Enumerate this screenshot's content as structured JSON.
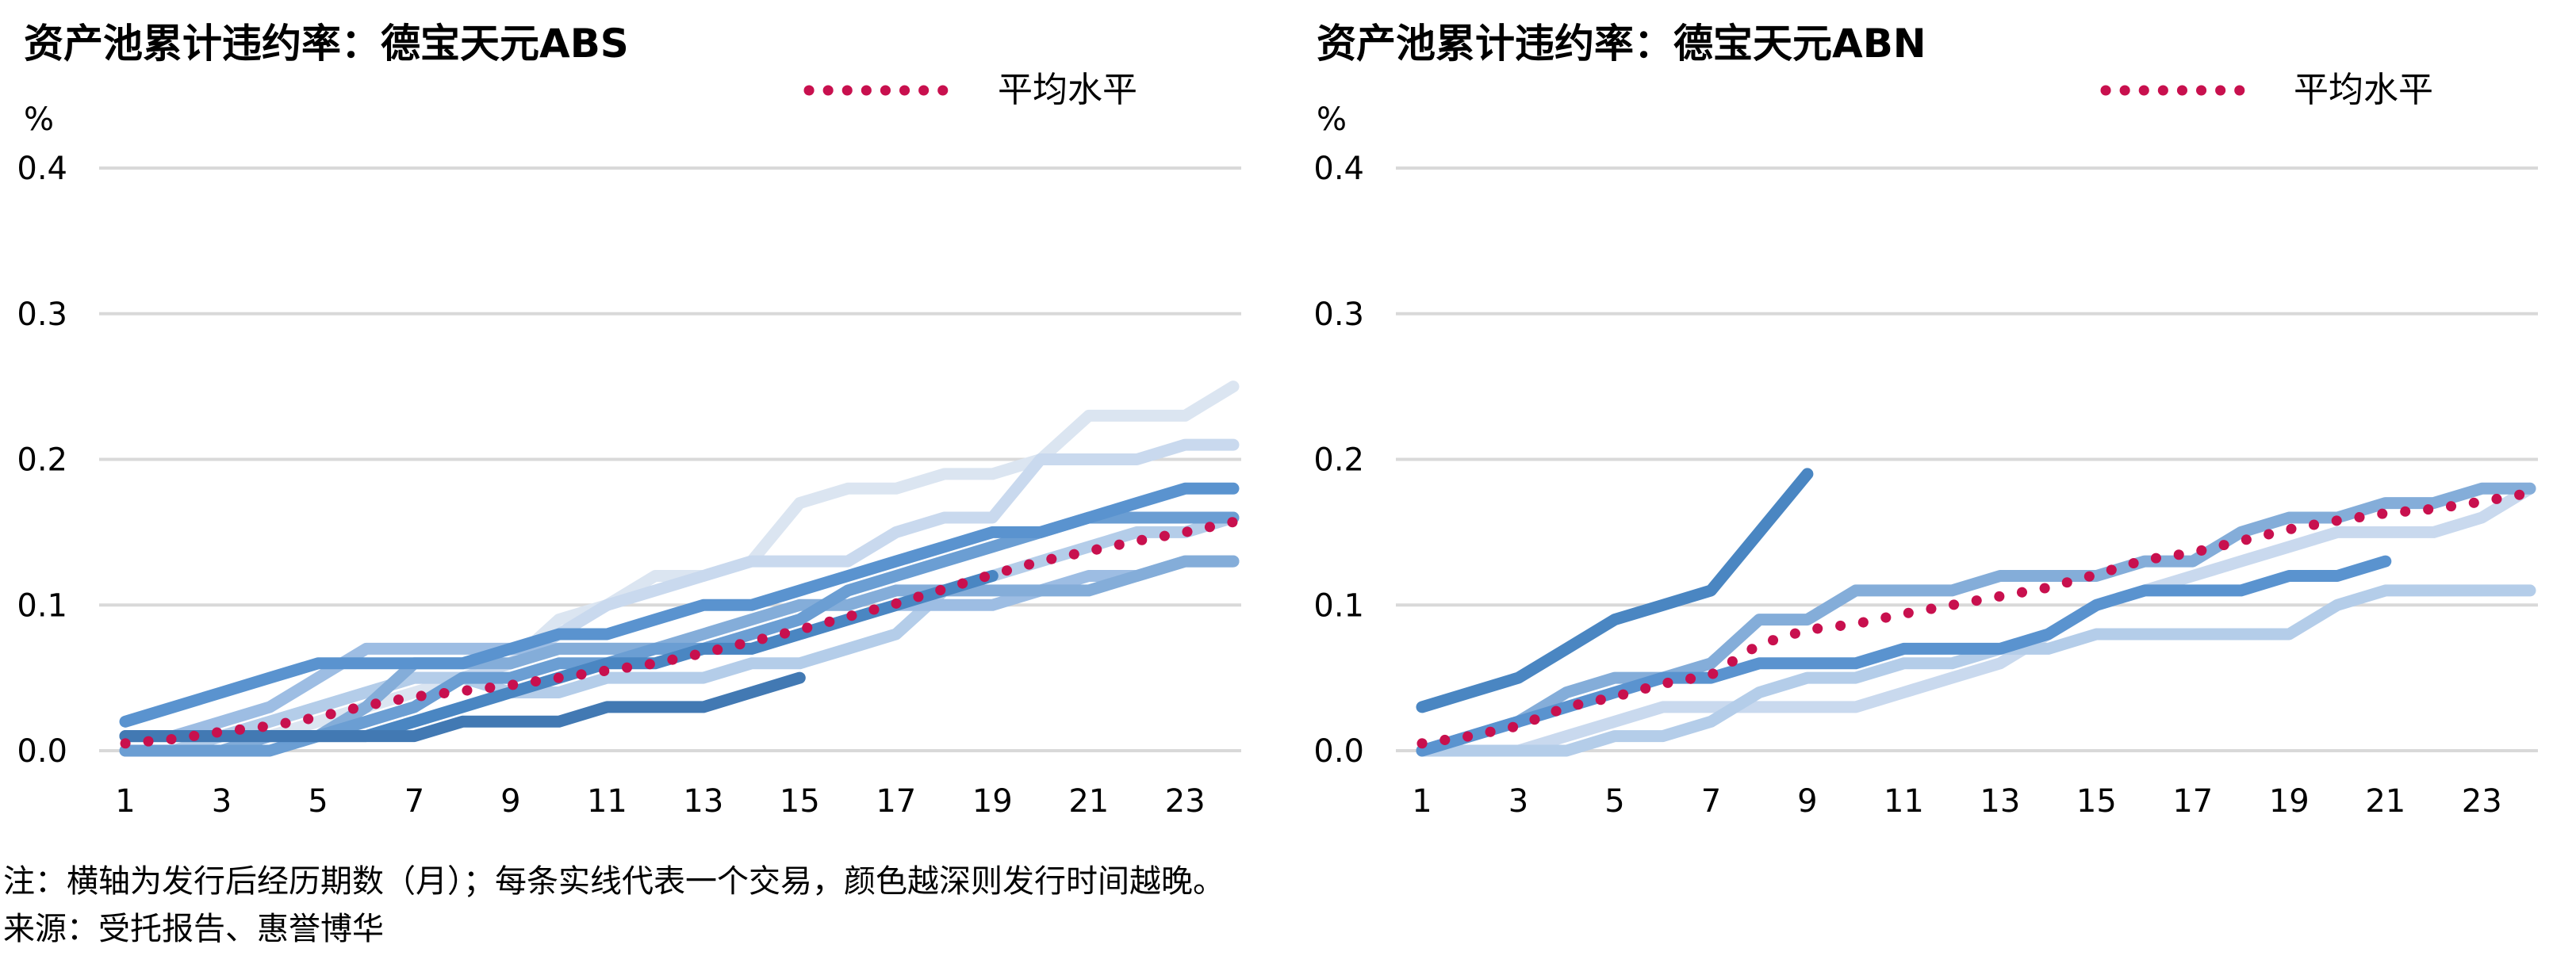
{
  "chart_data": [
    {
      "type": "line",
      "title": "资产池累计违约率：德宝天元ABS",
      "ylabel": "%",
      "yticks": [
        "0.0",
        "0.1",
        "0.2",
        "0.3",
        "0.4"
      ],
      "ylim": [
        0,
        0.4
      ],
      "xlim": [
        1,
        24
      ],
      "xticks": [
        "1",
        "3",
        "5",
        "7",
        "9",
        "11",
        "13",
        "15",
        "17",
        "19",
        "21",
        "23"
      ],
      "grid": true,
      "legend_position": "top-right",
      "legend": "平均水平",
      "average_color": "#c8104e",
      "series": [
        {
          "color": "#dbe5f1",
          "x": [
            1,
            2,
            3,
            4,
            5,
            6,
            7,
            8,
            9,
            10,
            11,
            12,
            13,
            14,
            15,
            16,
            17,
            18,
            19,
            20,
            21,
            22,
            23,
            24
          ],
          "values": [
            0,
            0,
            0,
            0.01,
            0.02,
            0.03,
            0.04,
            0.05,
            0.06,
            0.09,
            0.1,
            0.12,
            0.12,
            0.13,
            0.17,
            0.18,
            0.18,
            0.19,
            0.19,
            0.2,
            0.23,
            0.23,
            0.23,
            0.25
          ]
        },
        {
          "color": "#c9d9ee",
          "x": [
            1,
            2,
            3,
            4,
            5,
            6,
            7,
            8,
            9,
            10,
            11,
            12,
            13,
            14,
            15,
            16,
            17,
            18,
            19,
            20,
            21,
            22,
            23,
            24
          ],
          "values": [
            0,
            0,
            0.01,
            0.02,
            0.03,
            0.04,
            0.05,
            0.05,
            0.06,
            0.08,
            0.1,
            0.11,
            0.12,
            0.13,
            0.13,
            0.13,
            0.15,
            0.16,
            0.16,
            0.2,
            0.2,
            0.2,
            0.21,
            0.21
          ]
        },
        {
          "color": "#b4cde9",
          "x": [
            1,
            2,
            3,
            4,
            5,
            6,
            7,
            8,
            9,
            10,
            11,
            12,
            13,
            14,
            15,
            16,
            17,
            18,
            19,
            20,
            21,
            22,
            23,
            24
          ],
          "values": [
            0,
            0,
            0.01,
            0.02,
            0.03,
            0.04,
            0.05,
            0.05,
            0.04,
            0.04,
            0.05,
            0.05,
            0.05,
            0.06,
            0.06,
            0.07,
            0.08,
            0.11,
            0.12,
            0.13,
            0.14,
            0.15,
            0.15,
            0.16
          ]
        },
        {
          "color": "#9dbde3",
          "x": [
            1,
            2,
            3,
            4,
            5,
            6,
            7,
            8,
            9,
            10,
            11,
            12,
            13,
            14,
            15,
            16,
            17,
            18,
            19,
            20,
            21,
            22,
            23,
            24
          ],
          "values": [
            0.01,
            0.01,
            0.02,
            0.03,
            0.05,
            0.07,
            0.07,
            0.07,
            0.07,
            0.07,
            0.07,
            0.07,
            0.07,
            0.07,
            0.08,
            0.09,
            0.1,
            0.1,
            0.1,
            0.11,
            0.12,
            0.12,
            0.13,
            0.13
          ]
        },
        {
          "color": "#84add9",
          "x": [
            1,
            2,
            3,
            4,
            5,
            6,
            7,
            8,
            9,
            10,
            11,
            12,
            13,
            14,
            15,
            16,
            17,
            18,
            19,
            20,
            21,
            22,
            23,
            24
          ],
          "values": [
            0,
            0,
            0,
            0.01,
            0.01,
            0.03,
            0.06,
            0.06,
            0.06,
            0.07,
            0.07,
            0.07,
            0.08,
            0.09,
            0.1,
            0.1,
            0.11,
            0.11,
            0.11,
            0.11,
            0.11,
            0.12,
            0.13,
            0.13
          ]
        },
        {
          "color": "#6b9ed3",
          "x": [
            1,
            2,
            3,
            4,
            5,
            6,
            7,
            8,
            9,
            10,
            11,
            12,
            13,
            14,
            15,
            16,
            17,
            18,
            19,
            20,
            21,
            22,
            23,
            24
          ],
          "values": [
            0,
            0,
            0,
            0,
            0.01,
            0.02,
            0.03,
            0.05,
            0.05,
            0.06,
            0.06,
            0.07,
            0.07,
            0.08,
            0.09,
            0.11,
            0.12,
            0.13,
            0.14,
            0.15,
            0.16,
            0.16,
            0.16,
            0.16
          ]
        },
        {
          "color": "#5a93cf",
          "x": [
            1,
            2,
            3,
            4,
            5,
            6,
            7,
            8,
            9,
            10,
            11,
            12,
            13,
            14,
            15,
            16,
            17,
            18,
            19,
            20,
            21,
            22,
            23,
            24
          ],
          "values": [
            0.02,
            0.03,
            0.04,
            0.05,
            0.06,
            0.06,
            0.06,
            0.06,
            0.07,
            0.08,
            0.08,
            0.09,
            0.1,
            0.1,
            0.11,
            0.12,
            0.13,
            0.14,
            0.15,
            0.15,
            0.16,
            0.17,
            0.18,
            0.18
          ]
        },
        {
          "color": "#4a86c2",
          "x": [
            1,
            2,
            3,
            4,
            5,
            6,
            7,
            8,
            9,
            10,
            11,
            12,
            13,
            14,
            15,
            16,
            17,
            18,
            19
          ],
          "values": [
            0.01,
            0.01,
            0.01,
            0.01,
            0.01,
            0.01,
            0.02,
            0.03,
            0.04,
            0.05,
            0.06,
            0.06,
            0.07,
            0.07,
            0.08,
            0.09,
            0.1,
            0.11,
            0.12
          ]
        },
        {
          "color": "#4279b3",
          "x": [
            1,
            2,
            3,
            4,
            5,
            6,
            7,
            8,
            9,
            10,
            11,
            12,
            13,
            14,
            15
          ],
          "values": [
            0.01,
            0.01,
            0.01,
            0.01,
            0.01,
            0.01,
            0.01,
            0.02,
            0.02,
            0.02,
            0.03,
            0.03,
            0.03,
            0.04,
            0.05
          ]
        }
      ],
      "average": {
        "name": "平均水平",
        "x": [
          1,
          2,
          3,
          4,
          5,
          6,
          7,
          8,
          9,
          10,
          11,
          12,
          13,
          14,
          15,
          16,
          17,
          18,
          19,
          20,
          21,
          22,
          23,
          24
        ],
        "values": [
          0.005,
          0.008,
          0.013,
          0.017,
          0.023,
          0.031,
          0.037,
          0.041,
          0.045,
          0.05,
          0.055,
          0.06,
          0.067,
          0.075,
          0.083,
          0.092,
          0.101,
          0.111,
          0.121,
          0.13,
          0.137,
          0.144,
          0.15,
          0.157
        ]
      }
    },
    {
      "type": "line",
      "title": "资产池累计违约率：德宝天元ABN",
      "ylabel": "%",
      "yticks": [
        "0.0",
        "0.1",
        "0.2",
        "0.3",
        "0.4"
      ],
      "ylim": [
        0,
        0.4
      ],
      "xlim": [
        1,
        24
      ],
      "xticks": [
        "1",
        "3",
        "5",
        "7",
        "9",
        "11",
        "13",
        "15",
        "17",
        "19",
        "21",
        "23"
      ],
      "grid": true,
      "legend_position": "top-right",
      "legend": "平均水平",
      "average_color": "#c8104e",
      "series": [
        {
          "color": "#c9d9ee",
          "x": [
            1,
            2,
            3,
            4,
            5,
            6,
            7,
            8,
            9,
            10,
            11,
            12,
            13,
            14,
            15,
            16,
            17,
            18,
            19,
            20,
            21,
            22,
            23,
            24
          ],
          "values": [
            0,
            0,
            0,
            0.01,
            0.02,
            0.03,
            0.03,
            0.03,
            0.03,
            0.03,
            0.04,
            0.05,
            0.06,
            0.08,
            0.1,
            0.11,
            0.12,
            0.13,
            0.14,
            0.15,
            0.15,
            0.15,
            0.16,
            0.18
          ]
        },
        {
          "color": "#b4cde9",
          "x": [
            1,
            2,
            3,
            4,
            5,
            6,
            7,
            8,
            9,
            10,
            11,
            12,
            13,
            14,
            15,
            16,
            17,
            18,
            19,
            20,
            21,
            22,
            23,
            24
          ],
          "values": [
            0,
            0,
            0,
            0,
            0.01,
            0.01,
            0.02,
            0.04,
            0.05,
            0.05,
            0.06,
            0.06,
            0.07,
            0.07,
            0.08,
            0.08,
            0.08,
            0.08,
            0.08,
            0.1,
            0.11,
            0.11,
            0.11,
            0.11
          ]
        },
        {
          "color": "#84add9",
          "x": [
            1,
            2,
            3,
            4,
            5,
            6,
            7,
            8,
            9,
            10,
            11,
            12,
            13,
            14,
            15,
            16,
            17,
            18,
            19,
            20,
            21,
            22,
            23,
            24
          ],
          "values": [
            0,
            0.01,
            0.02,
            0.04,
            0.05,
            0.05,
            0.06,
            0.09,
            0.09,
            0.11,
            0.11,
            0.11,
            0.12,
            0.12,
            0.12,
            0.13,
            0.13,
            0.15,
            0.16,
            0.16,
            0.17,
            0.17,
            0.18,
            0.18
          ]
        },
        {
          "color": "#5a93cf",
          "x": [
            1,
            2,
            3,
            4,
            5,
            6,
            7,
            8,
            9,
            10,
            11,
            12,
            13,
            14,
            15,
            16,
            17,
            18,
            19,
            20,
            21
          ],
          "values": [
            0,
            0.01,
            0.02,
            0.03,
            0.04,
            0.05,
            0.05,
            0.06,
            0.06,
            0.06,
            0.07,
            0.07,
            0.07,
            0.08,
            0.1,
            0.11,
            0.11,
            0.11,
            0.12,
            0.12,
            0.13
          ]
        },
        {
          "color": "#4a86c2",
          "x": [
            1,
            2,
            3,
            4,
            5,
            6,
            7,
            8,
            9
          ],
          "values": [
            0.03,
            0.04,
            0.05,
            0.07,
            0.09,
            0.1,
            0.11,
            0.15,
            0.19
          ]
        }
      ],
      "average": {
        "name": "平均水平",
        "x": [
          1,
          2,
          3,
          4,
          5,
          6,
          7,
          8,
          9,
          10,
          11,
          12,
          13,
          14,
          15,
          16,
          17,
          18,
          19,
          20,
          21,
          22,
          23,
          24
        ],
        "values": [
          0.005,
          0.01,
          0.017,
          0.03,
          0.037,
          0.046,
          0.052,
          0.073,
          0.083,
          0.087,
          0.094,
          0.1,
          0.106,
          0.112,
          0.121,
          0.131,
          0.136,
          0.144,
          0.152,
          0.158,
          0.163,
          0.166,
          0.171,
          0.177
        ]
      }
    }
  ],
  "footnotes": {
    "note": "注：横轴为发行后经历期数（月）；每条实线代表一个交易，颜色越深则发行时间越晚。",
    "source": "来源：受托报告、惠誉博华"
  }
}
